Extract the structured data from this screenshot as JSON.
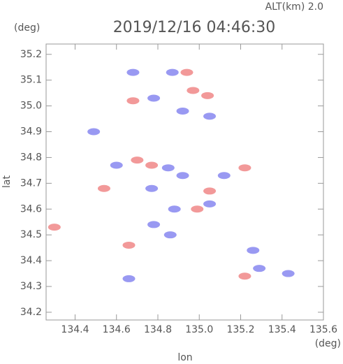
{
  "chart_data": {
    "type": "scatter",
    "title": "2019/12/16 04:46:30",
    "subtitle": "ALT(km) 2.0",
    "y_unit": "(deg)",
    "x_unit": "(deg)",
    "xlabel": "lon",
    "ylabel": "lat",
    "xlim": [
      134.26,
      135.6
    ],
    "ylim": [
      34.17,
      35.24
    ],
    "xticks": [
      134.4,
      134.6,
      134.8,
      {
        "value": 135,
        "label": "135.0"
      },
      135.2,
      135.4,
      135.6
    ],
    "yticks": [
      34.2,
      34.3,
      34.4,
      34.5,
      34.6,
      34.7,
      34.8,
      34.9,
      {
        "value": 35,
        "label": "35.0"
      },
      35.1,
      35.2
    ],
    "series": [
      {
        "color": "#ee7777",
        "x": [
          134.3,
          134.94,
          134.68,
          134.97,
          135.04,
          134.7,
          134.77,
          134.54,
          135.05,
          135.22,
          134.99,
          134.66,
          135.22
        ],
        "y": [
          34.53,
          35.13,
          35.02,
          35.06,
          35.04,
          34.79,
          34.77,
          34.68,
          34.67,
          34.76,
          34.6,
          34.46,
          34.34
        ]
      },
      {
        "color": "#7777ee",
        "x": [
          134.68,
          134.87,
          134.78,
          135.05,
          134.92,
          134.49,
          134.6,
          134.85,
          134.92,
          134.77,
          135.12,
          135.05,
          134.88,
          134.78,
          134.86,
          134.66,
          135.26,
          135.29,
          135.43
        ],
        "y": [
          35.13,
          35.13,
          35.03,
          34.96,
          34.98,
          34.9,
          34.77,
          34.76,
          34.73,
          34.68,
          34.73,
          34.62,
          34.6,
          34.54,
          34.5,
          34.33,
          34.44,
          34.37,
          34.35
        ]
      }
    ]
  }
}
